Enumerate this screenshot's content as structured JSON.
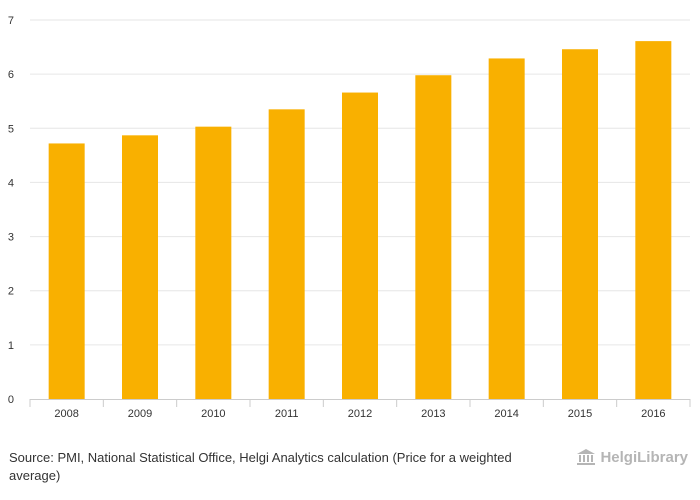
{
  "chart_data": {
    "type": "bar",
    "categories": [
      "2008",
      "2009",
      "2010",
      "2011",
      "2012",
      "2013",
      "2014",
      "2015",
      "2016"
    ],
    "values": [
      4.72,
      4.87,
      5.03,
      5.35,
      5.66,
      5.98,
      6.29,
      6.46,
      6.61
    ],
    "title": "",
    "xlabel": "",
    "ylabel": "",
    "ylim": [
      0,
      7
    ],
    "yticks": [
      "0",
      "1",
      "2",
      "3",
      "4",
      "5",
      "6",
      "7"
    ],
    "grid": true,
    "bar_color": "#f9b000"
  },
  "footer": {
    "source_label": "Source:",
    "source_text": "PMI, National Statistical Office, Helgi Analytics calculation (Price for a weighted average)"
  },
  "logo": {
    "text": "HelgiLibrary",
    "icon": "library-building-icon",
    "color": "#b5b5b5"
  }
}
